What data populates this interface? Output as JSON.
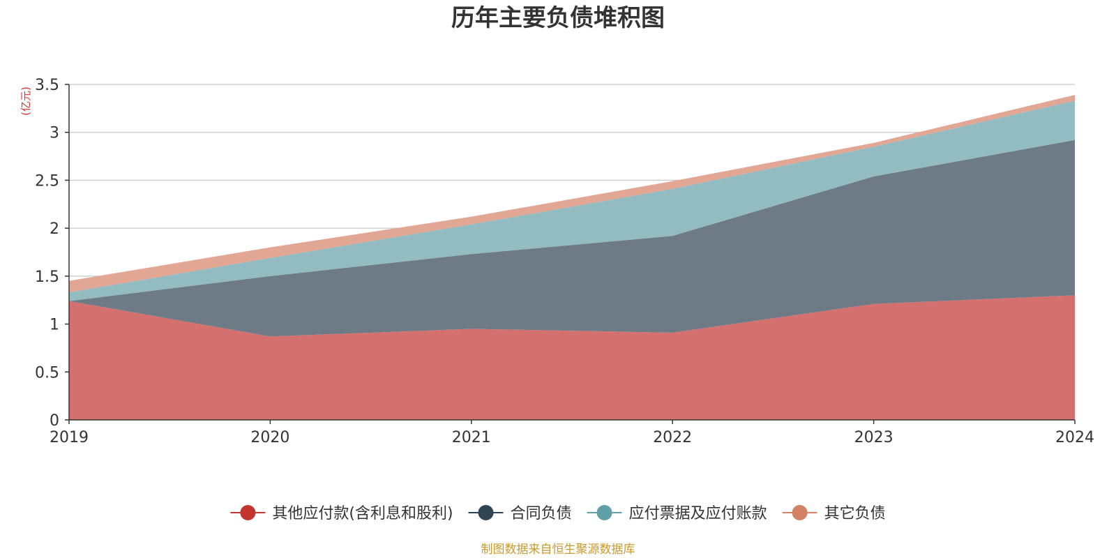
{
  "chart_data": {
    "type": "area",
    "stacked": true,
    "title": "历年主要负债堆积图",
    "ylabel": "(亿元)",
    "xlabel": "",
    "x": [
      "2019",
      "2020",
      "2021",
      "2022",
      "2023",
      "2024"
    ],
    "ylim": [
      0,
      3.5
    ],
    "yticks": [
      0,
      0.5,
      1,
      1.5,
      2,
      2.5,
      3,
      3.5
    ],
    "ytick_labels": [
      "0",
      "0.5",
      "1",
      "1.5",
      "2",
      "2.5",
      "3",
      "3.5"
    ],
    "grid": true,
    "legend_position": "bottom",
    "series": [
      {
        "name": "其他应付款(含利息和股利)",
        "color": "#c23531",
        "fill": "#d4706d",
        "values": [
          1.24,
          0.87,
          0.95,
          0.91,
          1.21,
          1.3
        ]
      },
      {
        "name": "合同负债",
        "color": "#2f4554",
        "fill": "#6e7b86",
        "values": [
          0.0,
          0.63,
          0.78,
          1.01,
          1.33,
          1.62
        ]
      },
      {
        "name": "应付票据及应付账款",
        "color": "#61a0a8",
        "fill": "#93bcc2",
        "values": [
          0.09,
          0.19,
          0.31,
          0.49,
          0.31,
          0.41
        ]
      },
      {
        "name": "其它负债",
        "color": "#d48265",
        "fill": "#e2a794",
        "values": [
          0.12,
          0.11,
          0.08,
          0.08,
          0.04,
          0.06
        ]
      }
    ]
  },
  "source_text": "制图数据来自恒生聚源数据库"
}
